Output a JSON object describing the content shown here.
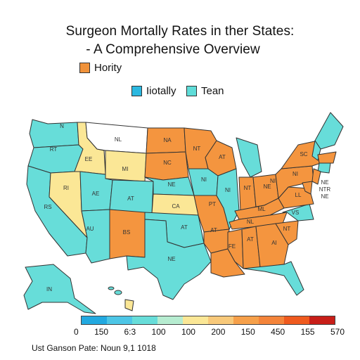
{
  "title_line1": "Surgeon Mortally Rates in ther States:",
  "title_line2": "- A Comprehensive Overview",
  "legend_top": {
    "label": "Hority",
    "color": "#f0923a"
  },
  "legend_mid": [
    {
      "label": "Iiotally",
      "color": "#2bb8e0"
    },
    {
      "label": "Tean",
      "color": "#5fdcd8"
    }
  ],
  "colors": {
    "teal": "#67ddd9",
    "orange": "#f4953f",
    "yellow": "#fbe796",
    "white": "#ffffff",
    "border": "#333333"
  },
  "state_labels": {
    "wa": "N",
    "or": "RT",
    "ca": "RS",
    "nv": "RI",
    "id": "EE",
    "mt": "NL",
    "wy": "MI",
    "ut": "AE",
    "az": "AU",
    "co": "AT",
    "nm": "BS",
    "nd": "NA",
    "sd": "NC",
    "ne": "NE",
    "ks": "CA",
    "tx": "NE",
    "ok": "AT",
    "mn": "NT",
    "ia": "NI",
    "mo": "PT",
    "ar": "AT",
    "la": "FE",
    "wi": "AT",
    "il": "NI",
    "ms": "AT",
    "al": "NL",
    "ga": "AI",
    "sc": "NT",
    "nc": "VS",
    "tn": "ML",
    "ky": "NE",
    "in": "NT",
    "oh": "NI",
    "pa": "NI",
    "ny": "SC",
    "va": "LL",
    "ak": "IN",
    "md": "NE",
    "de": "NTR",
    "nj": "NE"
  },
  "scale": {
    "colors": [
      "#22a9e0",
      "#4dc6e6",
      "#67ddd9",
      "#b6ecd0",
      "#fbe796",
      "#f8c97a",
      "#f6a04a",
      "#f4843a",
      "#ef5a1e",
      "#c81e18"
    ],
    "ticks": [
      "0",
      "150",
      "6:3",
      "100",
      "100",
      "200",
      "150",
      "450",
      "155",
      "570"
    ]
  },
  "footer": "Ust Ganson Pate: Noun 9,1 1018"
}
